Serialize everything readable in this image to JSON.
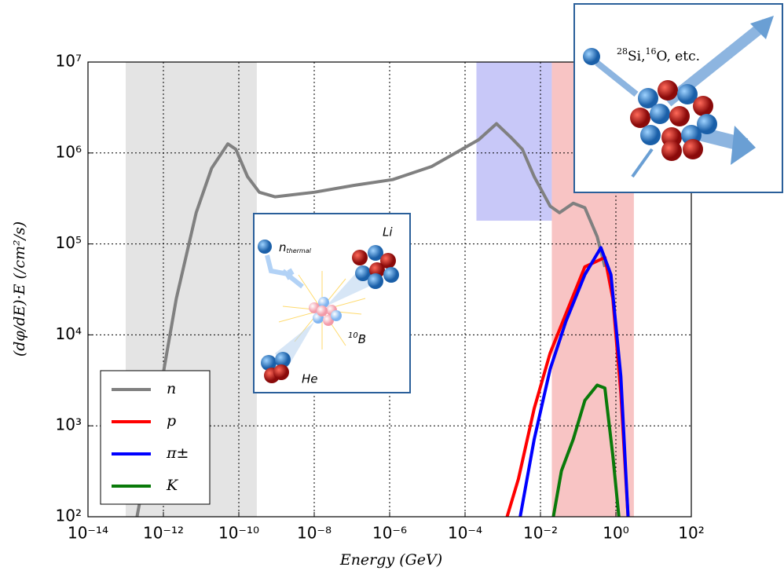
{
  "chart_data": {
    "type": "line",
    "x_label": "Energy (GeV)",
    "y_label": "(dφ/dE)·E (/cm²/s)",
    "log_x": true,
    "log_y": true,
    "grid": true,
    "legend": "lower left",
    "xlim": [
      1e-14,
      100
    ],
    "ylim": [
      100,
      10000000
    ],
    "xticks": [
      {
        "value": 1e-14,
        "label": "10⁻¹⁴"
      },
      {
        "value": 1e-12,
        "label": "10⁻¹²"
      },
      {
        "value": 1e-10,
        "label": "10⁻¹⁰"
      },
      {
        "value": 1e-08,
        "label": "10⁻⁸"
      },
      {
        "value": 1e-06,
        "label": "10⁻⁶"
      },
      {
        "value": 0.0001,
        "label": "10⁻⁴"
      },
      {
        "value": 0.01,
        "label": "10⁻²"
      },
      {
        "value": 1,
        "label": "10⁰"
      },
      {
        "value": 100,
        "label": "10²"
      }
    ],
    "yticks": [
      {
        "value": 100,
        "label": "10²"
      },
      {
        "value": 1000,
        "label": "10³"
      },
      {
        "value": 10000,
        "label": "10⁴"
      },
      {
        "value": 100000,
        "label": "10⁵"
      },
      {
        "value": 1000000,
        "label": "10⁶"
      },
      {
        "value": 10000000,
        "label": "10⁷"
      }
    ],
    "shaded_regions": [
      {
        "color": "#e4e4e4",
        "xlim": [
          1e-13,
          3e-10
        ]
      },
      {
        "color": "#c8c8f8",
        "xlim": [
          0.0002,
          0.02
        ],
        "ylim": [
          180000,
          10000000
        ]
      },
      {
        "color": "#f8c4c4",
        "xlim": [
          0.02,
          3
        ]
      }
    ],
    "series": [
      {
        "name": "n",
        "color": "#808080",
        "x": [
          2e-13,
          6.8e-13,
          2.2e-12,
          7.4e-12,
          1.9e-11,
          5.1e-11,
          8.3e-11,
          1.7e-10,
          3.5e-10,
          9.1e-10,
          1e-08,
          1.1e-07,
          1.2e-06,
          1.3e-05,
          5.6e-05,
          0.00023,
          0.00068,
          0.0016,
          0.0033,
          0.0068,
          0.018,
          0.032,
          0.074,
          0.15,
          0.32,
          0.51
        ],
        "values": [
          100,
          1550,
          25000,
          220000,
          680000,
          1260000,
          1100000,
          550000,
          370000,
          330000,
          370000,
          440000,
          510000,
          710000,
          1000000,
          1400000,
          2100000,
          1500000,
          1100000,
          550000,
          260000,
          220000,
          280000,
          250000,
          120000,
          56000
        ]
      },
      {
        "name": "p",
        "color": "#ff0000",
        "x": [
          0.0013,
          0.0026,
          0.0068,
          0.018,
          0.047,
          0.15,
          0.51,
          0.83,
          1.35,
          2.1
        ],
        "values": [
          100,
          260,
          1550,
          6300,
          17000,
          56000,
          71000,
          25000,
          2300,
          100
        ]
      },
      {
        "name": "π±",
        "color": "#0000ff",
        "x": [
          0.0029,
          0.0068,
          0.018,
          0.047,
          0.15,
          0.4,
          0.74,
          1.35,
          2.1
        ],
        "values": [
          100,
          710,
          4200,
          14000,
          46000,
          91000,
          46000,
          3500,
          100
        ]
      },
      {
        "name": "K",
        "color": "#0a7a0a",
        "x": [
          0.022,
          0.036,
          0.074,
          0.15,
          0.32,
          0.51,
          0.83,
          1.2
        ],
        "values": [
          100,
          320,
          710,
          1900,
          2800,
          2600,
          470,
          100
        ]
      }
    ],
    "annotations": {
      "neutron": "n",
      "neutron_sub": "thermal",
      "li": "Li",
      "boron_mass": "10",
      "boron": "B",
      "he": "He",
      "si_mass": "28",
      "si": "Si,",
      "o_mass": "16",
      "o": "O, etc."
    }
  }
}
